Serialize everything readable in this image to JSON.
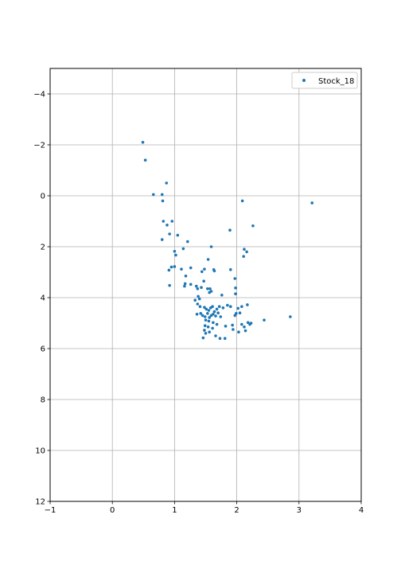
{
  "chart_data": {
    "type": "scatter",
    "xlim": [
      -1,
      4
    ],
    "ylim": [
      -5,
      12
    ],
    "y_inverted": true,
    "x_ticks": [
      -1,
      0,
      1,
      2,
      3,
      4
    ],
    "y_ticks": [
      -4,
      -2,
      0,
      2,
      4,
      6,
      8,
      10,
      12
    ],
    "x_tick_labels": [
      "−1",
      "0",
      "1",
      "2",
      "3",
      "4"
    ],
    "y_tick_labels": [
      "−4",
      "−2",
      "0",
      "2",
      "4",
      "6",
      "8",
      "10",
      "12"
    ],
    "grid": true,
    "legend_position": "top-right",
    "series": [
      {
        "name": "Stock_18",
        "color": "#1f77b4",
        "points": [
          [
            0.49,
            -2.1
          ],
          [
            0.53,
            -1.4
          ],
          [
            0.66,
            -0.05
          ],
          [
            0.8,
            -0.05
          ],
          [
            0.87,
            -0.5
          ],
          [
            0.81,
            0.2
          ],
          [
            0.82,
            1.0
          ],
          [
            0.96,
            1.0
          ],
          [
            0.88,
            1.15
          ],
          [
            0.92,
            1.5
          ],
          [
            1.05,
            1.55
          ],
          [
            0.8,
            1.72
          ],
          [
            1.21,
            1.8
          ],
          [
            1.14,
            2.08
          ],
          [
            1.0,
            2.18
          ],
          [
            1.02,
            2.33
          ],
          [
            1.59,
            2.0
          ],
          [
            1.89,
            1.35
          ],
          [
            2.26,
            1.18
          ],
          [
            2.09,
            0.2
          ],
          [
            3.21,
            0.28
          ],
          [
            2.12,
            2.1
          ],
          [
            2.16,
            2.2
          ],
          [
            2.11,
            2.38
          ],
          [
            1.54,
            2.5
          ],
          [
            0.95,
            2.8
          ],
          [
            1.0,
            2.78
          ],
          [
            1.11,
            2.88
          ],
          [
            0.91,
            2.92
          ],
          [
            1.26,
            2.83
          ],
          [
            1.44,
            2.98
          ],
          [
            1.48,
            2.88
          ],
          [
            1.63,
            2.9
          ],
          [
            1.64,
            2.95
          ],
          [
            1.9,
            2.9
          ],
          [
            1.97,
            3.25
          ],
          [
            1.18,
            3.15
          ],
          [
            1.17,
            3.45
          ],
          [
            1.16,
            3.55
          ],
          [
            1.26,
            3.48
          ],
          [
            0.92,
            3.52
          ],
          [
            1.35,
            3.55
          ],
          [
            1.37,
            3.65
          ],
          [
            1.43,
            3.6
          ],
          [
            1.47,
            3.35
          ],
          [
            1.53,
            3.65
          ],
          [
            1.56,
            3.8
          ],
          [
            1.57,
            3.65
          ],
          [
            1.59,
            3.75
          ],
          [
            1.98,
            3.62
          ],
          [
            1.98,
            3.85
          ],
          [
            1.76,
            3.9
          ],
          [
            1.38,
            3.95
          ],
          [
            1.4,
            4.05
          ],
          [
            1.33,
            4.1
          ],
          [
            1.37,
            4.25
          ],
          [
            1.41,
            4.35
          ],
          [
            1.48,
            4.38
          ],
          [
            1.51,
            4.45
          ],
          [
            1.55,
            4.5
          ],
          [
            1.58,
            4.4
          ],
          [
            1.61,
            4.35
          ],
          [
            1.64,
            4.55
          ],
          [
            1.68,
            4.45
          ],
          [
            1.72,
            4.35
          ],
          [
            1.78,
            4.4
          ],
          [
            1.85,
            4.3
          ],
          [
            1.9,
            4.35
          ],
          [
            2.02,
            4.42
          ],
          [
            2.08,
            4.35
          ],
          [
            2.17,
            4.28
          ],
          [
            1.36,
            4.65
          ],
          [
            1.42,
            4.62
          ],
          [
            1.45,
            4.7
          ],
          [
            1.49,
            4.75
          ],
          [
            1.53,
            4.62
          ],
          [
            1.56,
            4.78
          ],
          [
            1.59,
            4.7
          ],
          [
            1.62,
            4.65
          ],
          [
            1.66,
            4.72
          ],
          [
            1.7,
            4.6
          ],
          [
            1.74,
            4.75
          ],
          [
            1.97,
            4.7
          ],
          [
            1.99,
            4.62
          ],
          [
            2.05,
            4.6
          ],
          [
            1.5,
            4.88
          ],
          [
            1.55,
            4.92
          ],
          [
            1.62,
            4.98
          ],
          [
            1.68,
            5.05
          ],
          [
            1.49,
            5.1
          ],
          [
            1.54,
            5.15
          ],
          [
            1.61,
            5.2
          ],
          [
            1.82,
            5.12
          ],
          [
            1.93,
            5.08
          ],
          [
            2.08,
            5.05
          ],
          [
            2.12,
            5.15
          ],
          [
            2.18,
            4.98
          ],
          [
            2.21,
            5.05
          ],
          [
            2.14,
            5.3
          ],
          [
            2.03,
            5.35
          ],
          [
            2.44,
            4.88
          ],
          [
            2.86,
            4.75
          ],
          [
            1.48,
            5.28
          ],
          [
            1.5,
            5.4
          ],
          [
            1.46,
            5.58
          ],
          [
            1.56,
            5.35
          ],
          [
            1.66,
            5.5
          ],
          [
            1.73,
            5.6
          ],
          [
            1.81,
            5.6
          ],
          [
            1.94,
            5.25
          ],
          [
            2.23,
            5.0
          ]
        ]
      }
    ]
  }
}
